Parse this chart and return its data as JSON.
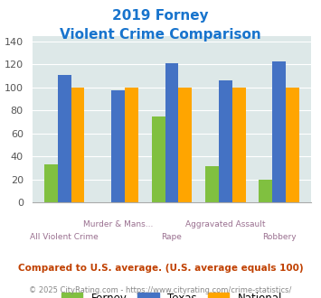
{
  "title_line1": "2019 Forney",
  "title_line2": "Violent Crime Comparison",
  "categories": [
    "All Violent Crime",
    "Murder & Mans...",
    "Rape",
    "Aggravated Assault",
    "Robbery"
  ],
  "forney": [
    33,
    0,
    75,
    32,
    20
  ],
  "texas": [
    111,
    98,
    121,
    106,
    123
  ],
  "national": [
    100,
    100,
    100,
    100,
    100
  ],
  "forney_color": "#80c040",
  "texas_color": "#4472c4",
  "national_color": "#ffa500",
  "ylim": [
    0,
    145
  ],
  "yticks": [
    0,
    20,
    40,
    60,
    80,
    100,
    120,
    140
  ],
  "bg_color": "#dde8e8",
  "footer_text": "Compared to U.S. average. (U.S. average equals 100)",
  "copyright_text": "© 2025 CityRating.com - https://www.cityrating.com/crime-statistics/",
  "title_color": "#1874CD",
  "footer_color": "#c04000",
  "copyright_color": "#888888",
  "xlabel_color": "#9a7090"
}
